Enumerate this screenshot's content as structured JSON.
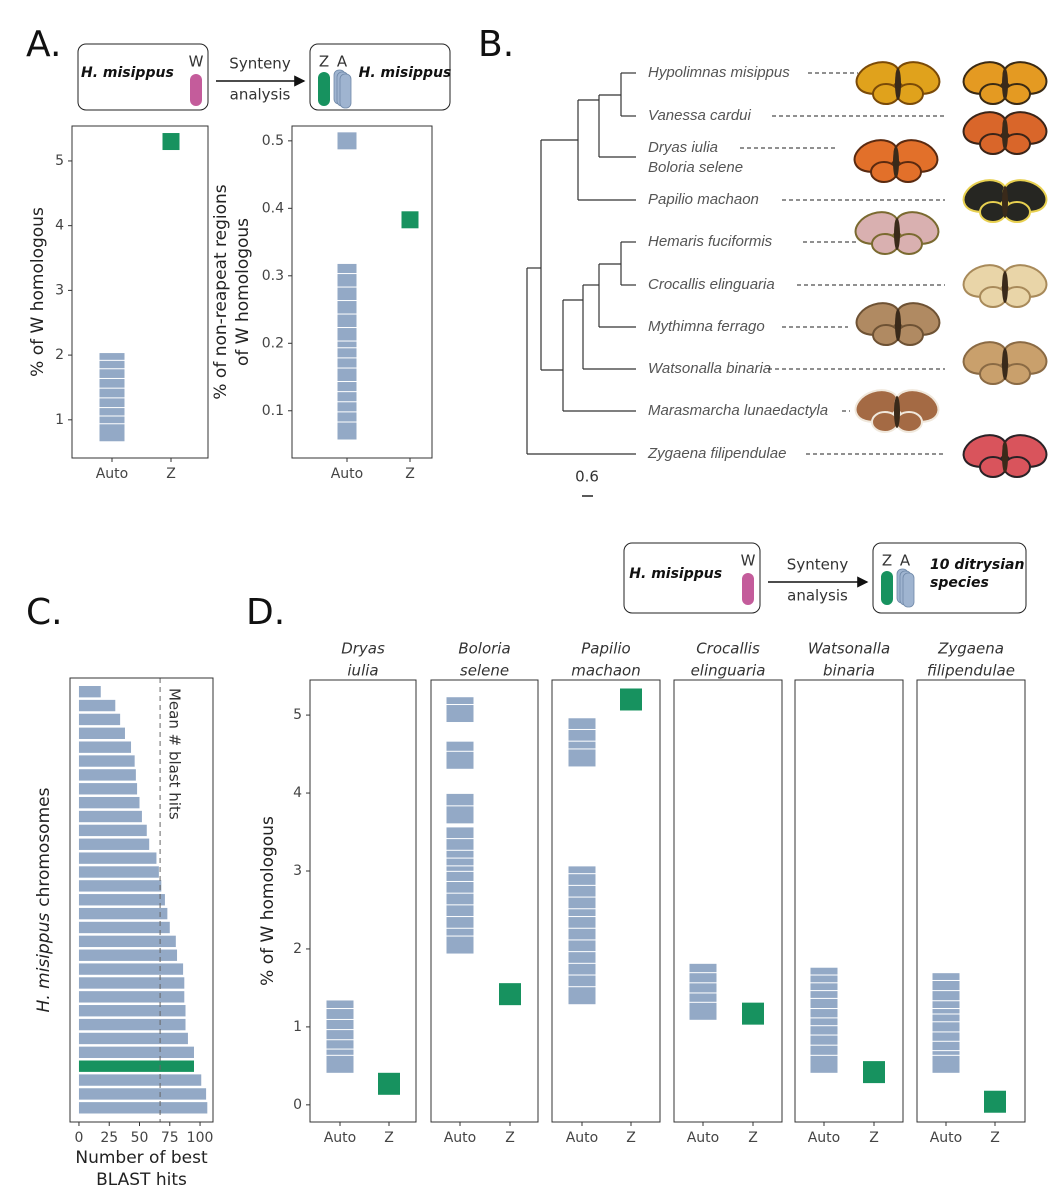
{
  "panel_labels": [
    "A.",
    "B.",
    "C.",
    "D."
  ],
  "schematics": [
    {
      "source": "H. misippus",
      "source_chromosome": "W",
      "arrow_label": [
        "Synteny",
        "analysis"
      ],
      "target_chromosomes": [
        "Z",
        "A"
      ],
      "target": [
        "H. misippus"
      ]
    },
    {
      "source": "H. misippus",
      "source_chromosome": "W",
      "arrow_label": [
        "Synteny",
        "analysis"
      ],
      "target_chromosomes": [
        "Z",
        "A"
      ],
      "target": [
        "10 ditrysian",
        "species"
      ]
    }
  ],
  "tree": {
    "leaves": [
      "Hypolimnas misippus",
      "Vanessa cardui",
      "Dryas iulia",
      "Boloria selene",
      "Papilio machaon",
      "Hemaris fuciformis",
      "Crocallis elinguaria",
      "Mythimna ferrago",
      "Watsonalla binaria",
      "Marasmarcha lunaedactyla",
      "Zygaena filipendulae"
    ],
    "scale_bar": 0.6
  },
  "chart_data": [
    {
      "type": "strip",
      "ylabel": [
        "% of W homologous"
      ],
      "categories": [
        "Auto",
        "Z"
      ],
      "values": [
        [
          1.9,
          1.78,
          1.65,
          1.5,
          1.35,
          1.2,
          1.05,
          0.92,
          0.8
        ],
        [
          5.3
        ]
      ],
      "colors": [
        "#93a9c6",
        "#17925f"
      ],
      "ylim": [
        0.41,
        5.54
      ],
      "yticks": [
        1,
        2,
        3,
        4,
        5
      ]
    },
    {
      "type": "strip",
      "ylabel": [
        "% of non-reapeat regions",
        "of W homologous"
      ],
      "categories": [
        "Auto",
        "Z"
      ],
      "values": [
        [
          0.5,
          0.305,
          0.29,
          0.27,
          0.25,
          0.23,
          0.21,
          0.19,
          0.18,
          0.165,
          0.15,
          0.13,
          0.115,
          0.1,
          0.085,
          0.07
        ],
        [
          0.383
        ]
      ],
      "colors": [
        "#93a9c6",
        "#17925f"
      ],
      "ylim": [
        0.03,
        0.522
      ],
      "yticks": [
        0.1,
        0.2,
        0.3,
        0.4,
        0.5
      ]
    },
    {
      "type": "hbar",
      "ylabel": [
        "H. misippus",
        "chromosomes"
      ],
      "xlabel": [
        "Number of best",
        "BLAST hits"
      ],
      "values": [
        18,
        30,
        34,
        38,
        43,
        46,
        47,
        48,
        50,
        52,
        56,
        58,
        64,
        66,
        68,
        71,
        73,
        75,
        80,
        81,
        86,
        87,
        87,
        88,
        88,
        90,
        95,
        95,
        101,
        105,
        106
      ],
      "colors": [
        "#93a9c6",
        "#93a9c6",
        "#93a9c6",
        "#93a9c6",
        "#93a9c6",
        "#93a9c6",
        "#93a9c6",
        "#93a9c6",
        "#93a9c6",
        "#93a9c6",
        "#93a9c6",
        "#93a9c6",
        "#93a9c6",
        "#93a9c6",
        "#93a9c6",
        "#93a9c6",
        "#93a9c6",
        "#93a9c6",
        "#93a9c6",
        "#93a9c6",
        "#93a9c6",
        "#93a9c6",
        "#93a9c6",
        "#93a9c6",
        "#93a9c6",
        "#93a9c6",
        "#93a9c6",
        "#17925f",
        "#93a9c6",
        "#93a9c6",
        "#93a9c6"
      ],
      "xlim": [
        -7.4,
        110.7
      ],
      "xticks": [
        0,
        25,
        50,
        75,
        100
      ],
      "reference_line": {
        "value": 67,
        "label": "Mean # blast hits"
      }
    },
    {
      "type": "strip",
      "title": [
        "Dryas",
        "iulia"
      ],
      "ylabel": [
        "% of W homologous"
      ],
      "categories": [
        "Auto",
        "Z"
      ],
      "values": [
        [
          1.23,
          1.12,
          0.98,
          0.85,
          0.72,
          0.6,
          0.52
        ],
        [
          0.27
        ]
      ],
      "colors": [
        "#93a9c6",
        "#17925f"
      ],
      "ylim": [
        -0.22,
        5.45
      ],
      "yticks": [
        0,
        1,
        2,
        3,
        4,
        5
      ]
    },
    {
      "type": "strip",
      "title": [
        "Boloria",
        "selene"
      ],
      "categories": [
        "Auto",
        "Z"
      ],
      "values": [
        [
          5.12,
          5.02,
          4.55,
          4.42,
          3.88,
          3.72,
          3.45,
          3.3,
          3.15,
          3.05,
          2.95,
          2.88,
          2.75,
          2.6,
          2.45,
          2.3,
          2.15,
          2.05
        ],
        [
          1.42
        ]
      ],
      "colors": [
        "#93a9c6",
        "#17925f"
      ],
      "ylim": [
        -0.22,
        5.45
      ]
    },
    {
      "type": "strip",
      "title": [
        "Papilio",
        "machaon"
      ],
      "categories": [
        "Auto",
        "Z"
      ],
      "values": [
        [
          4.85,
          4.7,
          4.55,
          4.45,
          2.95,
          2.85,
          2.7,
          2.55,
          2.4,
          2.3,
          2.15,
          2.0,
          1.85,
          1.7,
          1.55,
          1.4
        ],
        [
          5.2
        ]
      ],
      "colors": [
        "#93a9c6",
        "#17925f"
      ],
      "ylim": [
        -0.22,
        5.45
      ]
    },
    {
      "type": "strip",
      "title": [
        "Crocallis",
        "elinguaria"
      ],
      "categories": [
        "Auto",
        "Z"
      ],
      "values": [
        [
          1.7,
          1.58,
          1.45,
          1.32,
          1.2
        ],
        [
          1.17
        ]
      ],
      "colors": [
        "#93a9c6",
        "#17925f"
      ],
      "ylim": [
        -0.22,
        5.45
      ]
    },
    {
      "type": "strip",
      "title": [
        "Watsonalla",
        "binaria"
      ],
      "categories": [
        "Auto",
        "Z"
      ],
      "values": [
        [
          1.65,
          1.55,
          1.45,
          1.35,
          1.25,
          1.12,
          1.0,
          0.9,
          0.78,
          0.65,
          0.52
        ],
        [
          0.42
        ]
      ],
      "colors": [
        "#93a9c6",
        "#17925f"
      ],
      "ylim": [
        -0.22,
        5.45
      ]
    },
    {
      "type": "strip",
      "title": [
        "Zygaena",
        "filipendulae"
      ],
      "categories": [
        "Auto",
        "Z"
      ],
      "values": [
        [
          1.58,
          1.48,
          1.35,
          1.22,
          1.12,
          1.05,
          0.95,
          0.82,
          0.7,
          0.58,
          0.52
        ],
        [
          0.04
        ]
      ],
      "colors": [
        "#93a9c6",
        "#17925f"
      ],
      "ylim": [
        -0.22,
        5.45
      ]
    }
  ]
}
